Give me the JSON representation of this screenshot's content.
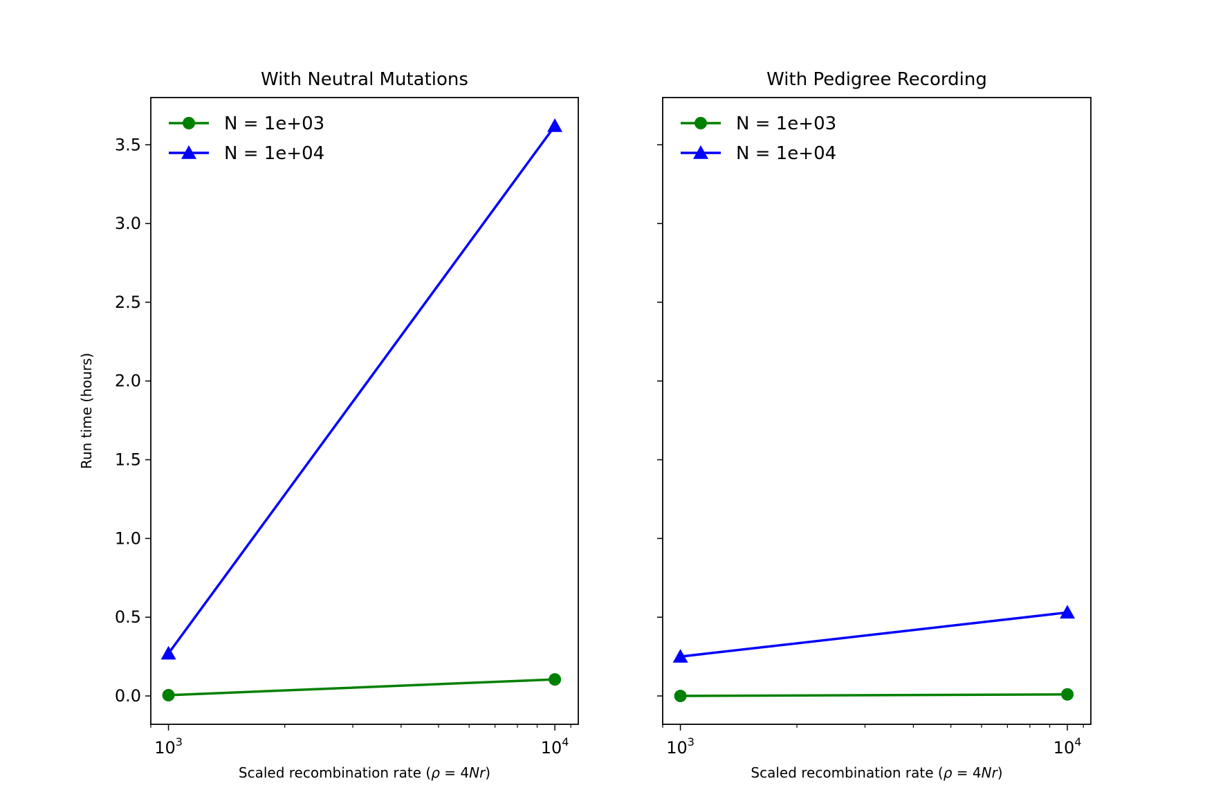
{
  "figure": {
    "shared_y": true,
    "ylabel": "Run time (hours)"
  },
  "chart_data": [
    {
      "type": "line",
      "title": "With Neutral Mutations",
      "xlabel": {
        "prefix": "Scaled recombination rate (",
        "rho": "ρ",
        "eq": " = 4",
        "var": "Nr",
        "suffix": ")"
      },
      "ylabel": "Run time (hours)",
      "xscale": "log",
      "xlim": [
        900,
        11500
      ],
      "ylim": [
        -0.18,
        3.8
      ],
      "xticks": [
        {
          "value": 1000,
          "base": "10",
          "exp": "3"
        },
        {
          "value": 10000,
          "base": "10",
          "exp": "4"
        }
      ],
      "yticks": [
        0.0,
        0.5,
        1.0,
        1.5,
        2.0,
        2.5,
        3.0,
        3.5
      ],
      "ytick_labels": [
        "0.0",
        "0.5",
        "1.0",
        "1.5",
        "2.0",
        "2.5",
        "3.0",
        "3.5"
      ],
      "legend_position": "upper-left",
      "series": [
        {
          "name": "N = 1e+03",
          "marker": "circle",
          "color": "#008000",
          "x": [
            1000,
            10000
          ],
          "y": [
            0.005,
            0.105
          ]
        },
        {
          "name": "N = 1e+04",
          "marker": "triangle",
          "color": "#0000ff",
          "x": [
            1000,
            10000
          ],
          "y": [
            0.27,
            3.62
          ]
        }
      ]
    },
    {
      "type": "line",
      "title": "With Pedigree Recording",
      "xlabel": {
        "prefix": "Scaled recombination rate (",
        "rho": "ρ",
        "eq": " = 4",
        "var": "Nr",
        "suffix": ")"
      },
      "xscale": "log",
      "xlim": [
        900,
        11500
      ],
      "ylim": [
        -0.18,
        3.8
      ],
      "xticks": [
        {
          "value": 1000,
          "base": "10",
          "exp": "3"
        },
        {
          "value": 10000,
          "base": "10",
          "exp": "4"
        }
      ],
      "yticks": [
        0.0,
        0.5,
        1.0,
        1.5,
        2.0,
        2.5,
        3.0,
        3.5
      ],
      "ytick_labels": [],
      "legend_position": "upper-left",
      "series": [
        {
          "name": "N = 1e+03",
          "marker": "circle",
          "color": "#008000",
          "x": [
            1000,
            10000
          ],
          "y": [
            0.0,
            0.01
          ]
        },
        {
          "name": "N = 1e+04",
          "marker": "triangle",
          "color": "#0000ff",
          "x": [
            1000,
            10000
          ],
          "y": [
            0.25,
            0.53
          ]
        }
      ]
    }
  ]
}
